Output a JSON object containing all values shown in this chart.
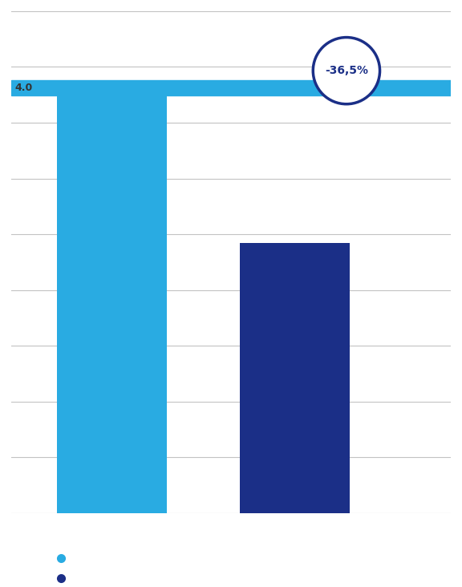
{
  "bar1_value": 100,
  "bar2_value": 63.5,
  "bar1_color": "#29ABE2",
  "bar2_color": "#1B2F87",
  "background_color": "#ffffff",
  "bar_positions": [
    1,
    2
  ],
  "bar_width": 0.6,
  "badge_text": "-36,5%",
  "badge_color": "#ffffff",
  "badge_border_color": "#1B2F87",
  "badge_text_color": "#1B2F87",
  "stripe_color": "#29ABE2",
  "stripe_height": 3.5,
  "legend_dot1_color": "#29ABE2",
  "legend_dot2_color": "#1B2F87",
  "ylim": [
    0,
    118
  ],
  "xlim": [
    0.45,
    2.85
  ],
  "grid_color": "#aaaaaa",
  "grid_alpha": 0.7,
  "num_gridlines": 9,
  "label_text": "4.0",
  "label_color": "#333333",
  "label_fontsize": 9
}
